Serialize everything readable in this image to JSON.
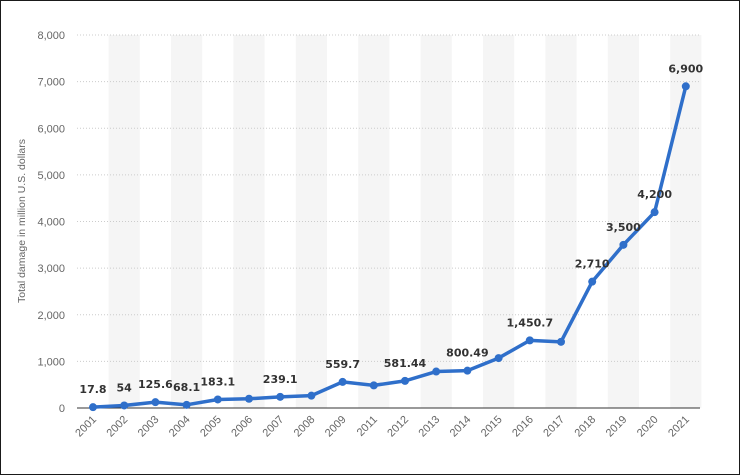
{
  "chart_data": {
    "type": "line",
    "title": "",
    "xlabel": "",
    "ylabel": "Total damage in million U.S. dollars",
    "categories": [
      "2001",
      "2002",
      "2003",
      "2004",
      "2005",
      "2006",
      "2007",
      "2008",
      "2009",
      "2011",
      "2012",
      "2013",
      "2014",
      "2015",
      "2016",
      "2017",
      "2018",
      "2019",
      "2020",
      "2021"
    ],
    "series": [
      {
        "name": "Total damage",
        "values": [
          17.8,
          54,
          125.6,
          68.1,
          183.1,
          198.4,
          239.1,
          264.6,
          559.7,
          485.3,
          581.44,
          781.84,
          800.49,
          1070.71,
          1450.7,
          1418.7,
          2710,
          3500,
          4200,
          6900
        ]
      }
    ],
    "data_labels": {
      "0": "17.8",
      "1": "54",
      "2": "125.6",
      "3": "68.1",
      "4": "183.1",
      "6": "239.1",
      "8": "559.7",
      "10": "581.44",
      "12": "800.49",
      "14": "1,450.7",
      "16": "2,710",
      "17": "3,500",
      "18": "4,200",
      "19": "6,900"
    },
    "ylim": [
      0,
      8000
    ],
    "yticks": [
      0,
      1000,
      2000,
      3000,
      4000,
      5000,
      6000,
      7000,
      8000
    ],
    "ytick_labels": [
      "0",
      "1,000",
      "2,000",
      "3,000",
      "4,000",
      "5,000",
      "6,000",
      "7,000",
      "8,000"
    ],
    "grid": true,
    "line_color": "#2f6fca",
    "band_color": "#f5f5f5",
    "grid_color": "#cccccc"
  }
}
